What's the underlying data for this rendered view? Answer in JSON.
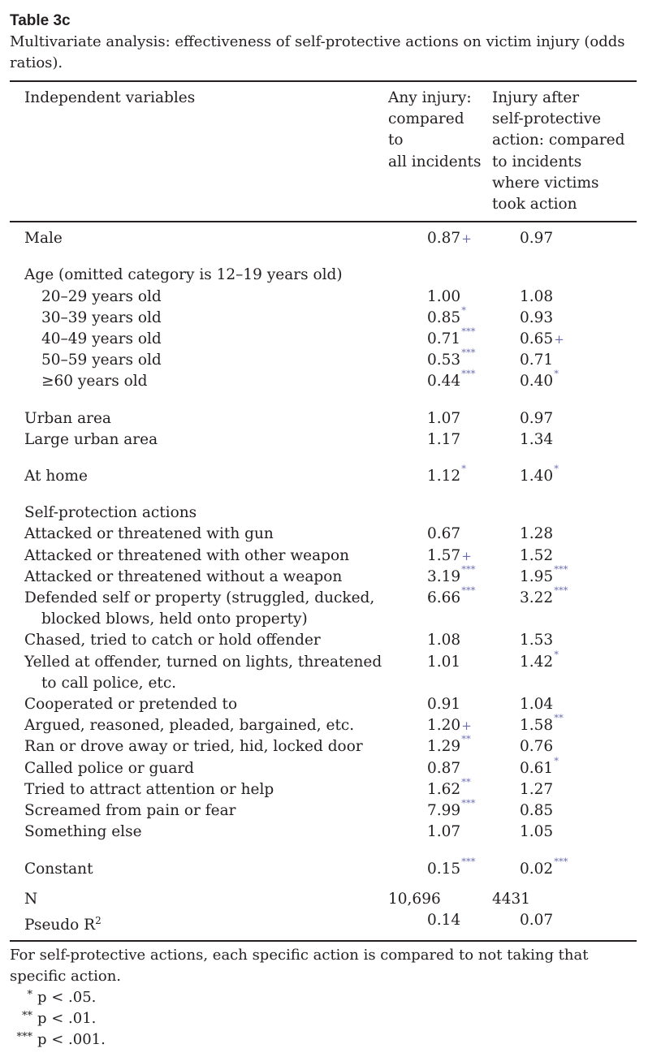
{
  "table_label": "Table 3c",
  "caption": "Multivariate analysis: effectiveness of self-protective actions on victim injury (odds ratios).",
  "headers": {
    "variable": "Independent variables",
    "any_injury": [
      "Any injury:",
      "compared",
      "to",
      "all incidents"
    ],
    "after_action": [
      "Injury after",
      "self-protective",
      "action: compared",
      "to incidents",
      "where victims",
      "took action"
    ]
  },
  "groups": [
    {
      "rows": [
        {
          "label": "Male",
          "any": "0.87",
          "any_sig": "+",
          "act": "0.97",
          "act_sig": ""
        }
      ]
    },
    {
      "title": "Age (omitted category is 12–19 years old)",
      "rows": [
        {
          "label": "20–29 years old",
          "any": "1.00",
          "any_sig": "",
          "act": "1.08",
          "act_sig": ""
        },
        {
          "label": "30–39 years old",
          "any": "0.85",
          "any_sig": "*",
          "act": "0.93",
          "act_sig": ""
        },
        {
          "label": "40–49 years old",
          "any": "0.71",
          "any_sig": "***",
          "act": "0.65",
          "act_sig": "+"
        },
        {
          "label": "50–59 years old",
          "any": "0.53",
          "any_sig": "***",
          "act": "0.71",
          "act_sig": ""
        },
        {
          "label": "≥60 years old",
          "any": "0.44",
          "any_sig": "***",
          "act": "0.40",
          "act_sig": "*"
        }
      ]
    },
    {
      "rows": [
        {
          "label": "Urban area",
          "any": "1.07",
          "any_sig": "",
          "act": "0.97",
          "act_sig": ""
        },
        {
          "label": "Large urban area",
          "any": "1.17",
          "any_sig": "",
          "act": "1.34",
          "act_sig": ""
        }
      ]
    },
    {
      "rows": [
        {
          "label": "At home",
          "any": "1.12",
          "any_sig": "*",
          "act": "1.40",
          "act_sig": "*"
        }
      ]
    },
    {
      "title": "Self-protection actions",
      "rows": [
        {
          "label": "Attacked or threatened with gun",
          "any": "0.67",
          "any_sig": "",
          "act": "1.28",
          "act_sig": ""
        },
        {
          "label": "Attacked or threatened with other weapon",
          "any": "1.57",
          "any_sig": "+",
          "act": "1.52",
          "act_sig": ""
        },
        {
          "label": "Attacked or threatened without a weapon",
          "any": "3.19",
          "any_sig": "***",
          "act": "1.95",
          "act_sig": "***"
        },
        {
          "label": "Defended self or property (struggled, ducked, blocked blows, held onto property)",
          "any": "6.66",
          "any_sig": "***",
          "act": "3.22",
          "act_sig": "***"
        },
        {
          "label": "Chased, tried to catch or hold offender",
          "any": "1.08",
          "any_sig": "",
          "act": "1.53",
          "act_sig": ""
        },
        {
          "label": "Yelled at offender, turned on lights, threatened to call police, etc.",
          "any": "1.01",
          "any_sig": "",
          "act": "1.42",
          "act_sig": "*"
        },
        {
          "label": "Cooperated or pretended to",
          "any": "0.91",
          "any_sig": "",
          "act": "1.04",
          "act_sig": ""
        },
        {
          "label": "Argued, reasoned, pleaded, bargained, etc.",
          "any": "1.20",
          "any_sig": "+",
          "act": "1.58",
          "act_sig": "**"
        },
        {
          "label": "Ran or drove away or tried, hid, locked door",
          "any": "1.29",
          "any_sig": "**",
          "act": "0.76",
          "act_sig": ""
        },
        {
          "label": "Called police or guard",
          "any": "0.87",
          "any_sig": "",
          "act": "0.61",
          "act_sig": "*"
        },
        {
          "label": "Tried to attract attention or help",
          "any": "1.62",
          "any_sig": "**",
          "act": "1.27",
          "act_sig": ""
        },
        {
          "label": "Screamed from pain or fear",
          "any": "7.99",
          "any_sig": "***",
          "act": "0.85",
          "act_sig": ""
        },
        {
          "label": "Something else",
          "any": "1.07",
          "any_sig": "",
          "act": "1.05",
          "act_sig": ""
        }
      ]
    },
    {
      "rows": [
        {
          "label": "Constant",
          "any": "0.15",
          "any_sig": "***",
          "act": "0.02",
          "act_sig": "***"
        }
      ]
    }
  ],
  "n_row": {
    "label": "N",
    "any": "10,696",
    "act": "4431"
  },
  "r2_row": {
    "label": "Pseudo R",
    "label_sup": "2",
    "any": "0.14",
    "act": "0.07"
  },
  "footnote": "For self-protective actions, each specific action is compared to not taking that specific action.",
  "significance": [
    {
      "mark": "*",
      "text": "p < .05."
    },
    {
      "mark": "**",
      "text": "p < .01."
    },
    {
      "mark": "***",
      "text": "p < .001."
    }
  ]
}
